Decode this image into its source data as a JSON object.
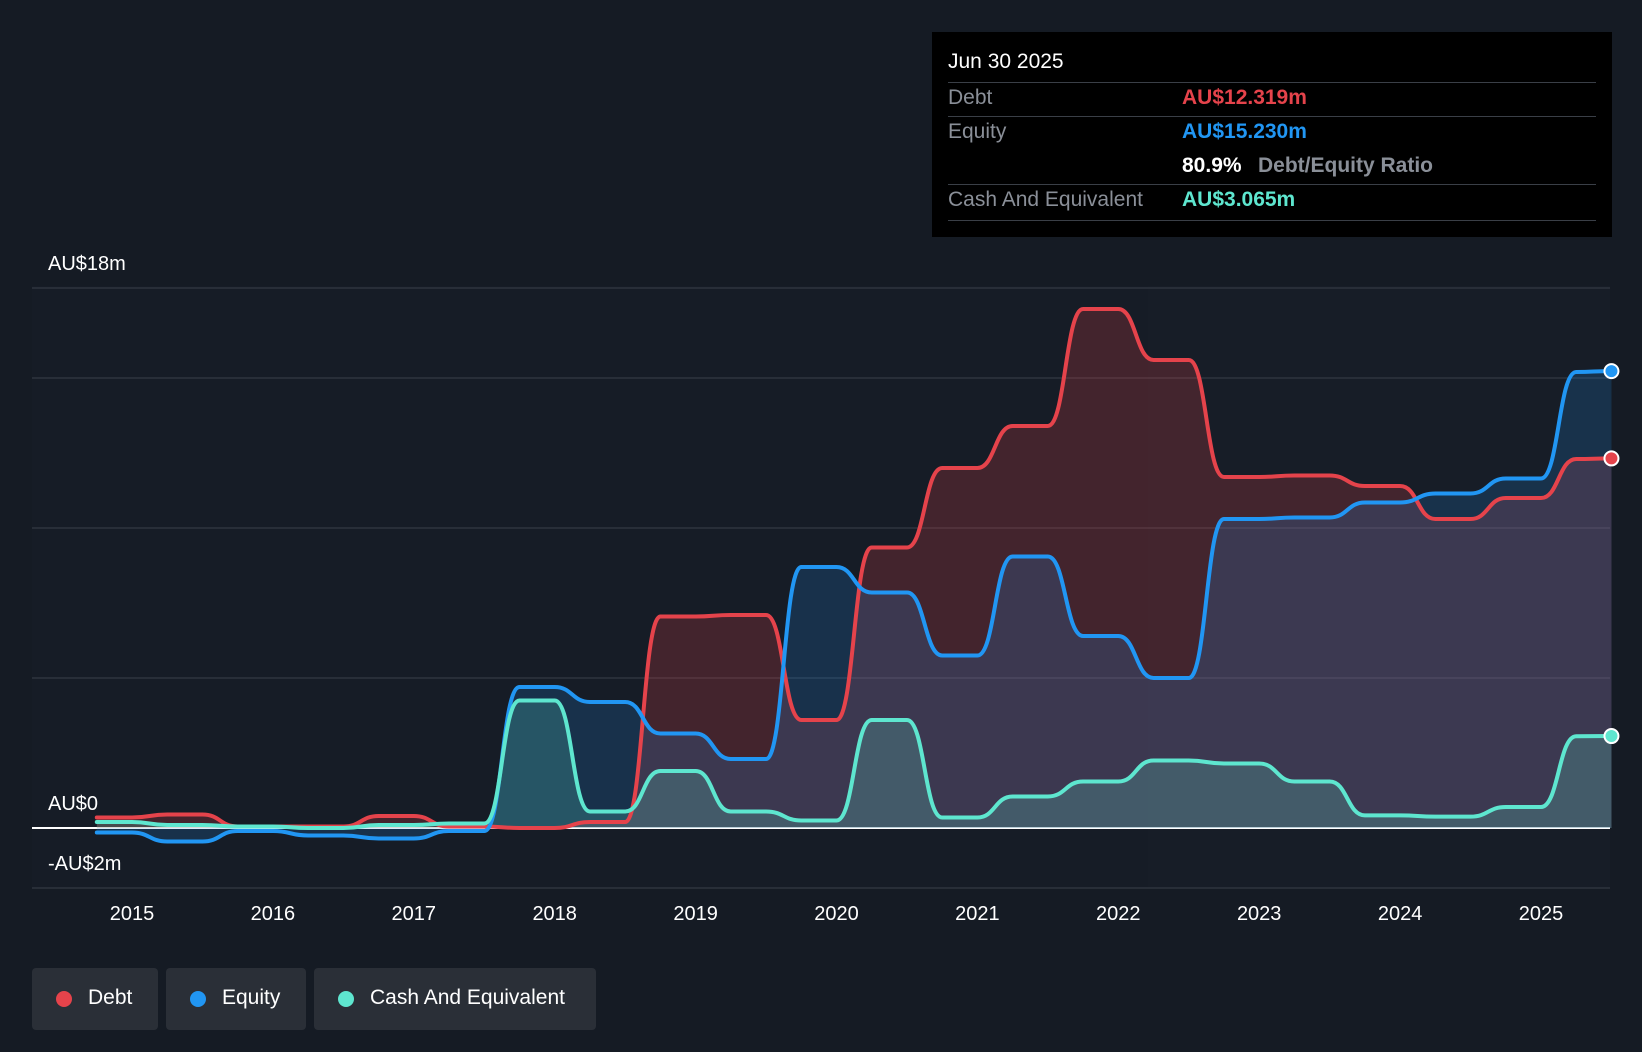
{
  "chart_data": {
    "type": "area",
    "y_axis": {
      "top_label": "AU$18m",
      "zero_label": "AU$0",
      "bottom_label": "-AU$2m",
      "ylim": [
        -2,
        18
      ],
      "gridlines": [
        18,
        15,
        10,
        5,
        0
      ]
    },
    "x_ticks": [
      "2015",
      "2016",
      "2017",
      "2018",
      "2019",
      "2020",
      "2021",
      "2022",
      "2023",
      "2024",
      "2025"
    ],
    "series": [
      {
        "name": "Debt",
        "color": "#e5434b",
        "points": [
          [
            2014.75,
            0.35
          ],
          [
            2015.0,
            0.35
          ],
          [
            2015.25,
            0.45
          ],
          [
            2015.5,
            0.45
          ],
          [
            2015.75,
            0.05
          ],
          [
            2016.0,
            0.05
          ],
          [
            2016.25,
            0.05
          ],
          [
            2016.5,
            0.05
          ],
          [
            2016.75,
            0.4
          ],
          [
            2017.0,
            0.4
          ],
          [
            2017.25,
            0.05
          ],
          [
            2017.5,
            0.05
          ],
          [
            2017.75,
            0.0
          ],
          [
            2018.0,
            0.0
          ],
          [
            2018.25,
            0.2
          ],
          [
            2018.5,
            0.2
          ],
          [
            2018.75,
            7.05
          ],
          [
            2019.0,
            7.05
          ],
          [
            2019.25,
            7.1
          ],
          [
            2019.5,
            7.1
          ],
          [
            2019.75,
            3.6
          ],
          [
            2020.0,
            3.6
          ],
          [
            2020.25,
            9.35
          ],
          [
            2020.5,
            9.35
          ],
          [
            2020.75,
            12.0
          ],
          [
            2021.0,
            12.0
          ],
          [
            2021.25,
            13.4
          ],
          [
            2021.5,
            13.4
          ],
          [
            2021.75,
            17.3
          ],
          [
            2022.0,
            17.3
          ],
          [
            2022.25,
            15.6
          ],
          [
            2022.5,
            15.6
          ],
          [
            2022.75,
            11.7
          ],
          [
            2023.0,
            11.7
          ],
          [
            2023.25,
            11.75
          ],
          [
            2023.5,
            11.75
          ],
          [
            2023.75,
            11.4
          ],
          [
            2024.0,
            11.4
          ],
          [
            2024.25,
            10.3
          ],
          [
            2024.5,
            10.3
          ],
          [
            2024.75,
            11.0
          ],
          [
            2025.0,
            11.0
          ],
          [
            2025.25,
            12.3
          ],
          [
            2025.5,
            12.319
          ]
        ]
      },
      {
        "name": "Equity",
        "color": "#2196f3",
        "points": [
          [
            2014.75,
            -0.15
          ],
          [
            2015.0,
            -0.15
          ],
          [
            2015.25,
            -0.45
          ],
          [
            2015.5,
            -0.45
          ],
          [
            2015.75,
            -0.1
          ],
          [
            2016.0,
            -0.1
          ],
          [
            2016.25,
            -0.25
          ],
          [
            2016.5,
            -0.25
          ],
          [
            2016.75,
            -0.35
          ],
          [
            2017.0,
            -0.35
          ],
          [
            2017.25,
            -0.1
          ],
          [
            2017.5,
            -0.1
          ],
          [
            2017.75,
            4.7
          ],
          [
            2018.0,
            4.7
          ],
          [
            2018.25,
            4.2
          ],
          [
            2018.5,
            4.2
          ],
          [
            2018.75,
            3.15
          ],
          [
            2019.0,
            3.15
          ],
          [
            2019.25,
            2.3
          ],
          [
            2019.5,
            2.3
          ],
          [
            2019.75,
            8.7
          ],
          [
            2020.0,
            8.7
          ],
          [
            2020.25,
            7.85
          ],
          [
            2020.5,
            7.85
          ],
          [
            2020.75,
            5.75
          ],
          [
            2021.0,
            5.75
          ],
          [
            2021.25,
            9.05
          ],
          [
            2021.5,
            9.05
          ],
          [
            2021.75,
            6.4
          ],
          [
            2022.0,
            6.4
          ],
          [
            2022.25,
            5.0
          ],
          [
            2022.5,
            5.0
          ],
          [
            2022.75,
            10.3
          ],
          [
            2023.0,
            10.3
          ],
          [
            2023.25,
            10.35
          ],
          [
            2023.5,
            10.35
          ],
          [
            2023.75,
            10.85
          ],
          [
            2024.0,
            10.85
          ],
          [
            2024.25,
            11.15
          ],
          [
            2024.5,
            11.15
          ],
          [
            2024.75,
            11.65
          ],
          [
            2025.0,
            11.65
          ],
          [
            2025.25,
            15.2
          ],
          [
            2025.5,
            15.23
          ]
        ]
      },
      {
        "name": "Cash And Equivalent",
        "color": "#5ee6cf",
        "points": [
          [
            2014.75,
            0.2
          ],
          [
            2015.0,
            0.2
          ],
          [
            2015.25,
            0.1
          ],
          [
            2015.5,
            0.1
          ],
          [
            2015.75,
            0.05
          ],
          [
            2016.0,
            0.05
          ],
          [
            2016.25,
            0.0
          ],
          [
            2016.5,
            0.0
          ],
          [
            2016.75,
            0.1
          ],
          [
            2017.0,
            0.1
          ],
          [
            2017.25,
            0.15
          ],
          [
            2017.5,
            0.15
          ],
          [
            2017.75,
            4.25
          ],
          [
            2018.0,
            4.25
          ],
          [
            2018.25,
            0.55
          ],
          [
            2018.5,
            0.55
          ],
          [
            2018.75,
            1.9
          ],
          [
            2019.0,
            1.9
          ],
          [
            2019.25,
            0.55
          ],
          [
            2019.5,
            0.55
          ],
          [
            2019.75,
            0.25
          ],
          [
            2020.0,
            0.25
          ],
          [
            2020.25,
            3.6
          ],
          [
            2020.5,
            3.6
          ],
          [
            2020.75,
            0.35
          ],
          [
            2021.0,
            0.35
          ],
          [
            2021.25,
            1.05
          ],
          [
            2021.5,
            1.05
          ],
          [
            2021.75,
            1.55
          ],
          [
            2022.0,
            1.55
          ],
          [
            2022.25,
            2.25
          ],
          [
            2022.5,
            2.25
          ],
          [
            2022.75,
            2.15
          ],
          [
            2023.0,
            2.15
          ],
          [
            2023.25,
            1.55
          ],
          [
            2023.5,
            1.55
          ],
          [
            2023.75,
            0.42
          ],
          [
            2024.0,
            0.42
          ],
          [
            2024.25,
            0.38
          ],
          [
            2024.5,
            0.38
          ],
          [
            2024.75,
            0.7
          ],
          [
            2025.0,
            0.7
          ],
          [
            2025.25,
            3.06
          ],
          [
            2025.5,
            3.065
          ]
        ]
      }
    ]
  },
  "tooltip": {
    "date": "Jun 30 2025",
    "debt_label": "Debt",
    "debt_value": "AU$12.319m",
    "equity_label": "Equity",
    "equity_value": "AU$15.230m",
    "ratio_value": "80.9%",
    "ratio_label": "Debt/Equity Ratio",
    "cash_label": "Cash And Equivalent",
    "cash_value": "AU$3.065m"
  },
  "legend": [
    {
      "label": "Debt",
      "color": "#e5434b"
    },
    {
      "label": "Equity",
      "color": "#2196f3"
    },
    {
      "label": "Cash And Equivalent",
      "color": "#5ee6cf"
    }
  ]
}
